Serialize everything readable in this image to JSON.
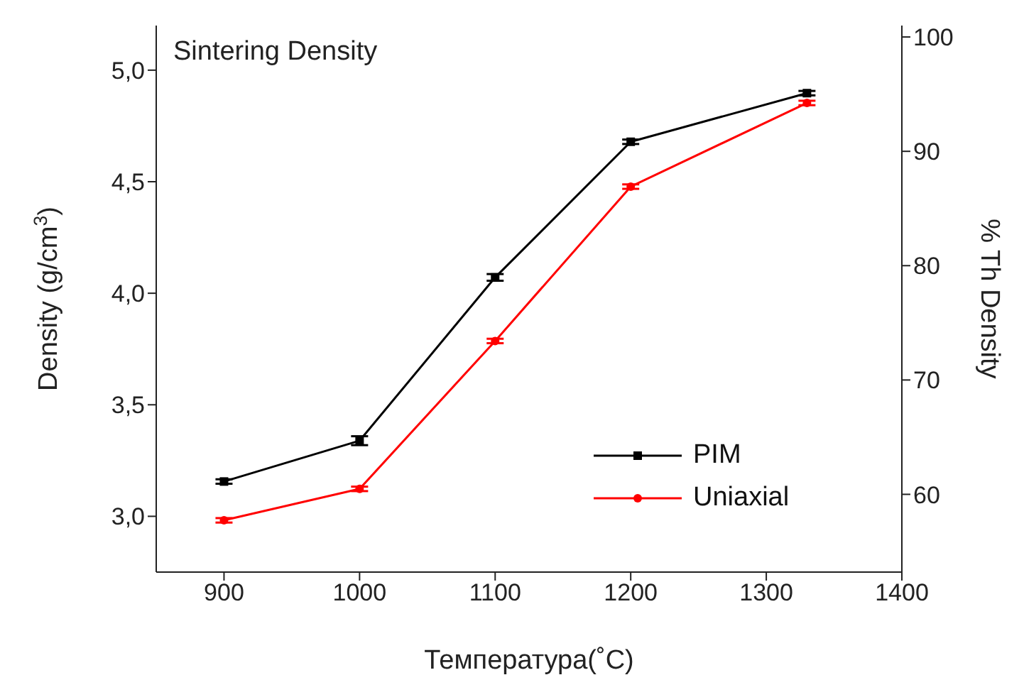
{
  "chart_data": {
    "type": "line",
    "title": "Sintering Density",
    "xlabel": "Температура(˚C)",
    "ylabel": "Density (g/cm$^{3}$)",
    "y2label": "% Th Density",
    "x": [
      900,
      1000,
      1100,
      1200,
      1330
    ],
    "series": [
      {
        "name": "PIM",
        "color": "#000000",
        "marker": "square",
        "values": [
          3.156,
          3.339,
          4.071,
          4.679,
          4.897
        ],
        "errors": [
          0.01,
          0.02,
          0.015,
          0.01,
          0.01
        ]
      },
      {
        "name": "Uniaxial",
        "color": "#ff0000",
        "marker": "circle",
        "values": [
          2.982,
          3.123,
          3.786,
          4.478,
          4.853
        ],
        "errors": [
          0.01,
          0.01,
          0.01,
          0.01,
          0.01
        ]
      }
    ],
    "xlim": [
      850,
      1400
    ],
    "xticks": [
      900,
      1000,
      1100,
      1200,
      1300,
      1400
    ],
    "ylim": [
      2.75,
      5.2
    ],
    "yticks": [
      {
        "value": 3.0,
        "label": "3,0"
      },
      {
        "value": 3.5,
        "label": "3,5"
      },
      {
        "value": 4.0,
        "label": "4,0"
      },
      {
        "value": 4.5,
        "label": "4,5"
      },
      {
        "value": 5.0,
        "label": "5,0"
      }
    ],
    "y2lim": [
      53.2,
      101
    ],
    "y2ticks": [
      60,
      70,
      80,
      90,
      100
    ],
    "legend": "bottom right",
    "grid": false,
    "line_style": "solid"
  }
}
